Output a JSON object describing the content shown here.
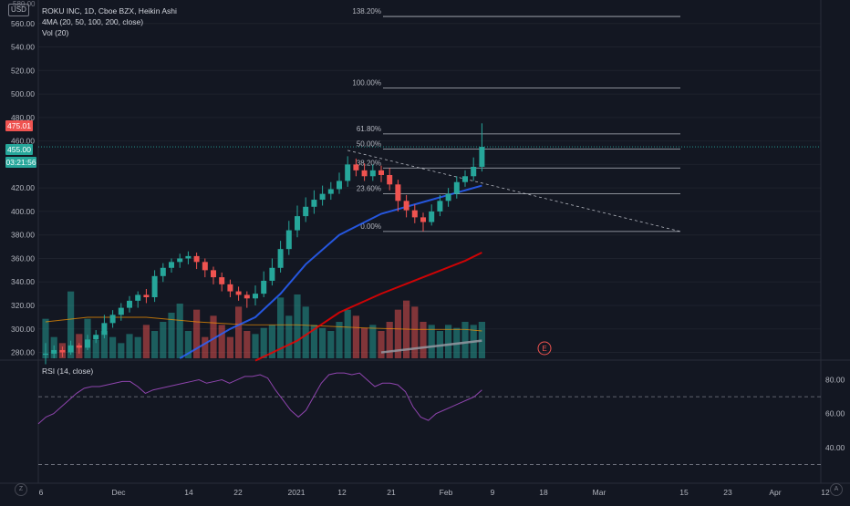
{
  "header": {
    "currency": "USD",
    "title": "ROKU INC, 1D, Cboe BZX, Heikin Ashi",
    "ma_label": "4MA (20, 50, 100, 200, close)",
    "vol_label": "Vol (20)"
  },
  "price_tags": {
    "top": "580.00",
    "high": "475.01",
    "last": "455.00",
    "timer": "03:21:56"
  },
  "rsi_panel": {
    "label": "RSI (14, close)",
    "ticks": [
      "80.00",
      "60.00",
      "40.00"
    ],
    "levels": [
      70,
      30
    ]
  },
  "earnings_marker": "E",
  "corner_left": "Z",
  "corner_right": "A",
  "colors": {
    "background": "#131722",
    "up": "#26a69a",
    "down": "#ef5350",
    "ma20": "#2962ff",
    "ma50": "#ef0000",
    "ma200": "#9598a1",
    "rsi": "#8e44ad",
    "vol_ma": "#ff9800"
  },
  "chart_data": {
    "type": "candlestick",
    "y_ticks": [
      "560.00",
      "540.00",
      "520.00",
      "500.00",
      "480.00",
      "460.00",
      "440.00",
      "420.00",
      "400.00",
      "380.00",
      "360.00",
      "340.00",
      "320.00",
      "300.00",
      "280.00"
    ],
    "y_range": [
      275,
      580
    ],
    "x_ticks": [
      "6",
      "Dec",
      "14",
      "22",
      "2021",
      "12",
      "21",
      "Feb",
      "9",
      "18",
      "Mar",
      "15",
      "23",
      "Apr",
      "12"
    ],
    "fib_levels": [
      {
        "label": "138.20%",
        "price": 566
      },
      {
        "label": "100.00%",
        "price": 505
      },
      {
        "label": "61.80%",
        "price": 466
      },
      {
        "label": "50.00%",
        "price": 453
      },
      {
        "label": "38.20%",
        "price": 437
      },
      {
        "label": "23.60%",
        "price": 415
      },
      {
        "label": "0.00%",
        "price": 383
      }
    ],
    "candles": [
      [
        278,
        279,
        270,
        288
      ],
      [
        279,
        282,
        275,
        286
      ],
      [
        282,
        280,
        276,
        285
      ],
      [
        280,
        286,
        278,
        290
      ],
      [
        286,
        284,
        279,
        288
      ],
      [
        284,
        291,
        282,
        295
      ],
      [
        291,
        295,
        288,
        299
      ],
      [
        295,
        305,
        292,
        312
      ],
      [
        305,
        312,
        301,
        316
      ],
      [
        312,
        318,
        307,
        322
      ],
      [
        318,
        324,
        314,
        328
      ],
      [
        324,
        329,
        318,
        332
      ],
      [
        329,
        327,
        322,
        334
      ],
      [
        327,
        345,
        323,
        350
      ],
      [
        345,
        352,
        340,
        356
      ],
      [
        352,
        357,
        348,
        360
      ],
      [
        357,
        360,
        352,
        364
      ],
      [
        360,
        362,
        355,
        366
      ],
      [
        362,
        357,
        351,
        365
      ],
      [
        357,
        350,
        344,
        360
      ],
      [
        350,
        344,
        338,
        353
      ],
      [
        344,
        338,
        332,
        348
      ],
      [
        338,
        332,
        327,
        342
      ],
      [
        332,
        329,
        324,
        336
      ],
      [
        329,
        326,
        318,
        332
      ],
      [
        326,
        330,
        320,
        337
      ],
      [
        330,
        341,
        327,
        349
      ],
      [
        341,
        352,
        337,
        360
      ],
      [
        352,
        368,
        348,
        375
      ],
      [
        368,
        384,
        363,
        392
      ],
      [
        384,
        396,
        378,
        405
      ],
      [
        396,
        404,
        391,
        412
      ],
      [
        404,
        410,
        398,
        418
      ],
      [
        410,
        415,
        405,
        422
      ],
      [
        415,
        419,
        410,
        425
      ],
      [
        419,
        426,
        415,
        433
      ],
      [
        426,
        440,
        421,
        447
      ],
      [
        440,
        435,
        430,
        445
      ],
      [
        435,
        430,
        426,
        441
      ],
      [
        430,
        435,
        426,
        440
      ],
      [
        435,
        431,
        425,
        439
      ],
      [
        431,
        423,
        418,
        437
      ],
      [
        423,
        409,
        400,
        427
      ],
      [
        409,
        401,
        395,
        414
      ],
      [
        401,
        395,
        390,
        406
      ],
      [
        395,
        391,
        383,
        399
      ],
      [
        391,
        400,
        388,
        406
      ],
      [
        400,
        409,
        396,
        414
      ],
      [
        409,
        415,
        404,
        420
      ],
      [
        415,
        425,
        411,
        430
      ],
      [
        425,
        430,
        421,
        435
      ],
      [
        430,
        438,
        426,
        446
      ],
      [
        438,
        455,
        434,
        475
      ]
    ],
    "volume": [
      26,
      14,
      10,
      44,
      16,
      26,
      12,
      18,
      14,
      10,
      16,
      14,
      22,
      18,
      24,
      30,
      36,
      18,
      32,
      14,
      28,
      22,
      14,
      34,
      18,
      16,
      20,
      22,
      40,
      28,
      42,
      34,
      22,
      20,
      18,
      24,
      32,
      28,
      20,
      22,
      18,
      24,
      32,
      38,
      34,
      24,
      22,
      18,
      22,
      20,
      24,
      22,
      24
    ],
    "volume_max": 60,
    "ma20": [
      [
        16,
        275
      ],
      [
        22,
        300
      ],
      [
        25,
        310
      ],
      [
        28,
        330
      ],
      [
        31,
        355
      ],
      [
        35,
        380
      ],
      [
        40,
        398
      ],
      [
        45,
        408
      ],
      [
        50,
        418
      ],
      [
        52,
        422
      ]
    ],
    "ma50": [
      [
        25,
        273
      ],
      [
        30,
        290
      ],
      [
        35,
        314
      ],
      [
        40,
        330
      ],
      [
        45,
        344
      ],
      [
        50,
        358
      ],
      [
        52,
        365
      ]
    ],
    "ma200": [
      [
        40,
        280
      ],
      [
        46,
        285
      ],
      [
        52,
        290
      ]
    ],
    "vol_ma": [
      [
        0,
        24
      ],
      [
        5,
        27
      ],
      [
        12,
        27
      ],
      [
        18,
        24
      ],
      [
        24,
        22
      ],
      [
        30,
        22
      ],
      [
        38,
        20
      ],
      [
        44,
        19
      ],
      [
        50,
        19
      ],
      [
        52,
        18
      ]
    ],
    "fib_trendline": [
      [
        36,
        452
      ],
      [
        64,
        383
      ]
    ],
    "rsi_values": [
      54,
      58,
      60,
      64,
      68,
      72,
      75,
      76,
      76,
      77,
      78,
      79,
      79,
      76,
      72,
      74,
      75,
      76,
      77,
      78,
      79,
      80,
      78,
      79,
      80,
      78,
      80,
      82,
      82,
      83,
      81,
      74,
      68,
      62,
      58,
      62,
      70,
      78,
      83,
      84,
      84,
      83,
      84,
      80,
      76,
      78,
      78,
      77,
      73,
      64,
      58,
      56,
      60,
      62,
      64,
      66,
      68,
      70,
      74
    ]
  }
}
